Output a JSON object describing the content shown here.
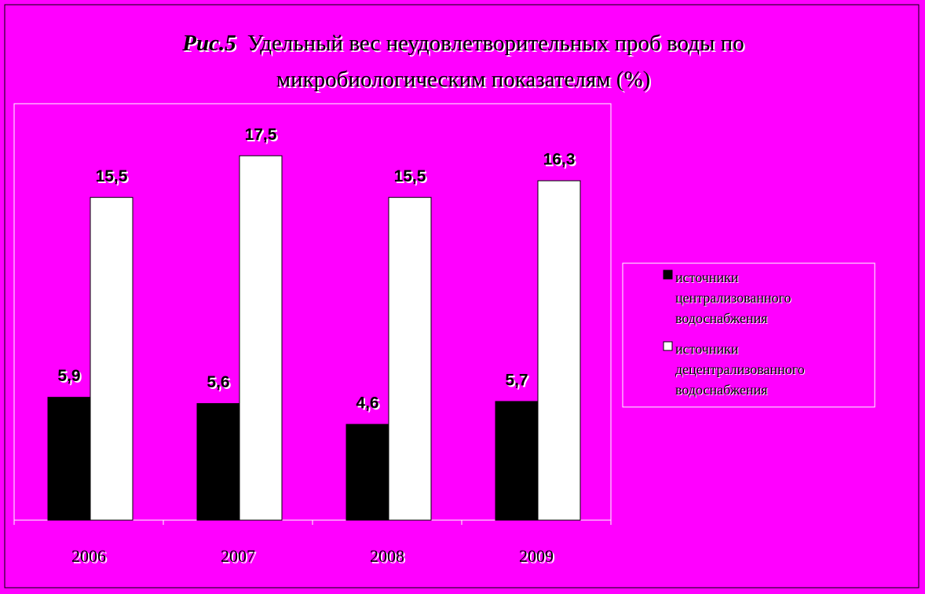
{
  "chart_data": {
    "type": "bar",
    "figure_label": "Рис.5",
    "title": "Удельный вес неудовлетворительных проб воды по микробиологическим показателям (%)",
    "categories": [
      "2006",
      "2007",
      "2008",
      "2009"
    ],
    "series": [
      {
        "name": "источники централизованного водоснабжения",
        "color": "#000000",
        "values": [
          5.9,
          5.6,
          4.6,
          5.7
        ],
        "value_labels": [
          "5,9",
          "5,6",
          "4,6",
          "5,7"
        ]
      },
      {
        "name": "источники децентрализованного водоснабжения",
        "color": "#ffffff",
        "values": [
          15.5,
          17.5,
          15.5,
          16.3
        ],
        "value_labels": [
          "15,5",
          "17,5",
          "15,5",
          "16,3"
        ]
      }
    ],
    "ylim": [
      0,
      20
    ],
    "legend": "right"
  }
}
